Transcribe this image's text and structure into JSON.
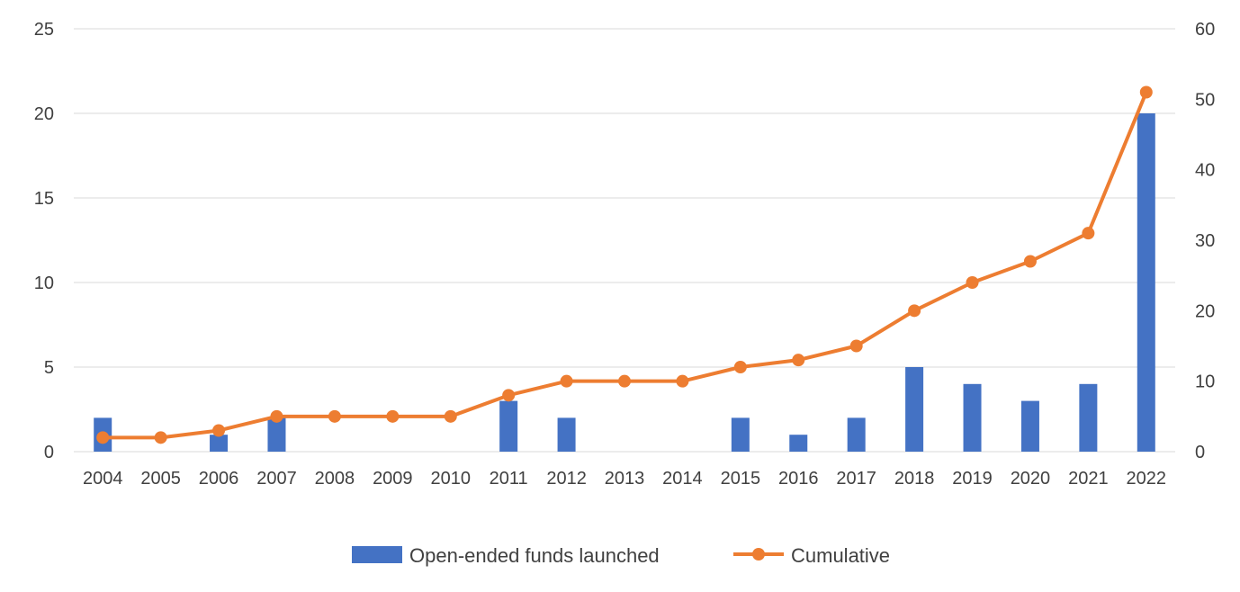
{
  "chart_data": {
    "type": "bar+line",
    "title": "",
    "categories": [
      "2004",
      "2005",
      "2006",
      "2007",
      "2008",
      "2009",
      "2010",
      "2011",
      "2012",
      "2013",
      "2014",
      "2015",
      "2016",
      "2017",
      "2018",
      "2019",
      "2020",
      "2021",
      "2022"
    ],
    "series": [
      {
        "name": "Open-ended funds launched",
        "type": "bar",
        "axis": "left",
        "color": "#4472c4",
        "values": [
          2,
          0,
          1,
          2,
          0,
          0,
          0,
          3,
          2,
          0,
          0,
          2,
          1,
          2,
          5,
          4,
          3,
          4,
          20
        ]
      },
      {
        "name": "Cumulative",
        "type": "line",
        "axis": "right",
        "color": "#ed7d31",
        "values": [
          2,
          2,
          3,
          5,
          5,
          5,
          5,
          8,
          10,
          10,
          10,
          12,
          13,
          15,
          20,
          24,
          27,
          31,
          51
        ]
      }
    ],
    "y_left": {
      "min": 0,
      "max": 25,
      "ticks": [
        "0",
        "5",
        "10",
        "15",
        "20",
        "25"
      ]
    },
    "y_right": {
      "min": 0,
      "max": 60,
      "ticks": [
        "0",
        "10",
        "20",
        "30",
        "40",
        "50",
        "60"
      ]
    },
    "grid": true,
    "legend_position": "bottom"
  }
}
